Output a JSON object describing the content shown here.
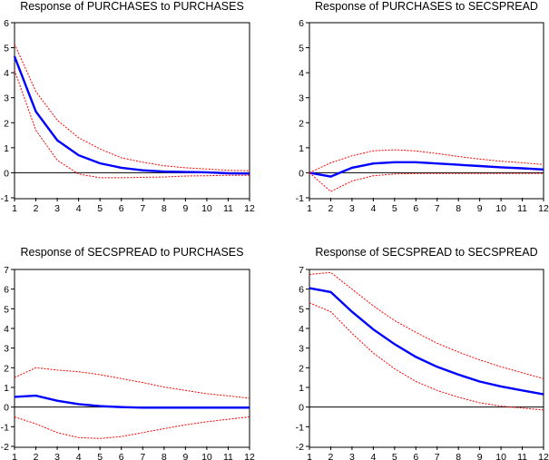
{
  "chart_data": [
    {
      "type": "line",
      "title": "Response of PURCHASES to PURCHASES",
      "x": [
        1,
        2,
        3,
        4,
        5,
        6,
        7,
        8,
        9,
        10,
        11,
        12
      ],
      "ylim": [
        -1,
        6
      ],
      "yticks": [
        -1,
        0,
        1,
        2,
        3,
        4,
        5,
        6
      ],
      "series": [
        {
          "name": "response",
          "color": "#0000ff",
          "values": [
            4.65,
            2.45,
            1.3,
            0.7,
            0.38,
            0.2,
            0.1,
            0.05,
            0.03,
            0.02,
            -0.02,
            -0.03
          ]
        },
        {
          "name": "upper band",
          "color": "#ff0000",
          "values": [
            5.15,
            3.25,
            2.1,
            1.4,
            0.95,
            0.6,
            0.42,
            0.28,
            0.2,
            0.15,
            0.1,
            0.08
          ]
        },
        {
          "name": "lower band",
          "color": "#ff0000",
          "values": [
            4.1,
            1.7,
            0.5,
            -0.05,
            -0.2,
            -0.2,
            -0.18,
            -0.17,
            -0.13,
            -0.12,
            -0.1,
            -0.1
          ]
        }
      ]
    },
    {
      "type": "line",
      "title": "Response of PURCHASES to SECSPREAD",
      "x": [
        1,
        2,
        3,
        4,
        5,
        6,
        7,
        8,
        9,
        10,
        11,
        12
      ],
      "ylim": [
        -1,
        6
      ],
      "yticks": [
        -1,
        0,
        1,
        2,
        3,
        4,
        5,
        6
      ],
      "series": [
        {
          "name": "response",
          "color": "#0000ff",
          "values": [
            0,
            -0.15,
            0.2,
            0.37,
            0.42,
            0.42,
            0.37,
            0.32,
            0.27,
            0.22,
            0.18,
            0.13
          ]
        },
        {
          "name": "upper band",
          "color": "#ff0000",
          "values": [
            0,
            0.4,
            0.68,
            0.88,
            0.92,
            0.87,
            0.77,
            0.65,
            0.55,
            0.46,
            0.4,
            0.33
          ]
        },
        {
          "name": "lower band",
          "color": "#ff0000",
          "values": [
            0,
            -0.75,
            -0.33,
            -0.12,
            -0.05,
            -0.03,
            -0.03,
            -0.03,
            -0.03,
            -0.03,
            -0.03,
            -0.03
          ]
        }
      ]
    },
    {
      "type": "line",
      "title": "Response of SECSPREAD to PURCHASES",
      "x": [
        1,
        2,
        3,
        4,
        5,
        6,
        7,
        8,
        9,
        10,
        11,
        12
      ],
      "ylim": [
        -2,
        7
      ],
      "yticks": [
        -2,
        -1,
        0,
        1,
        2,
        3,
        4,
        5,
        6,
        7
      ],
      "series": [
        {
          "name": "response",
          "color": "#0000ff",
          "values": [
            0.52,
            0.58,
            0.32,
            0.15,
            0.05,
            0.0,
            -0.03,
            -0.03,
            -0.03,
            -0.03,
            -0.03,
            -0.03
          ]
        },
        {
          "name": "upper band",
          "color": "#ff0000",
          "values": [
            1.5,
            2.0,
            1.88,
            1.8,
            1.65,
            1.45,
            1.25,
            1.02,
            0.85,
            0.68,
            0.57,
            0.45
          ]
        },
        {
          "name": "lower band",
          "color": "#ff0000",
          "values": [
            -0.5,
            -0.85,
            -1.3,
            -1.55,
            -1.6,
            -1.5,
            -1.3,
            -1.1,
            -0.9,
            -0.75,
            -0.62,
            -0.5
          ]
        }
      ]
    },
    {
      "type": "line",
      "title": "Response of SECSPREAD to SECSPREAD",
      "x": [
        1,
        2,
        3,
        4,
        5,
        6,
        7,
        8,
        9,
        10,
        11,
        12
      ],
      "ylim": [
        -2,
        7
      ],
      "yticks": [
        -2,
        -1,
        0,
        1,
        2,
        3,
        4,
        5,
        6,
        7
      ],
      "series": [
        {
          "name": "response",
          "color": "#0000ff",
          "values": [
            6.05,
            5.85,
            4.85,
            3.95,
            3.2,
            2.55,
            2.05,
            1.65,
            1.3,
            1.05,
            0.85,
            0.65
          ]
        },
        {
          "name": "upper band",
          "color": "#ff0000",
          "values": [
            6.75,
            6.85,
            6.0,
            5.15,
            4.4,
            3.8,
            3.25,
            2.8,
            2.4,
            2.05,
            1.75,
            1.45
          ]
        },
        {
          "name": "lower band",
          "color": "#ff0000",
          "values": [
            5.3,
            4.85,
            3.75,
            2.75,
            1.95,
            1.3,
            0.85,
            0.5,
            0.22,
            0.05,
            -0.05,
            -0.15
          ]
        }
      ]
    }
  ]
}
